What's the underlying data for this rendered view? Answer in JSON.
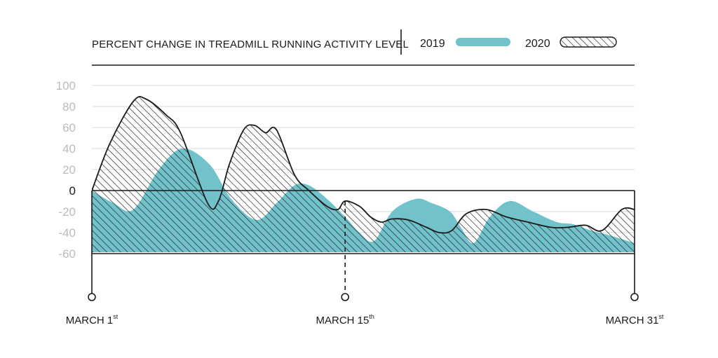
{
  "chart_data": {
    "type": "area",
    "title": "PERCENT CHANGE IN TREADMILL RUNNING ACTIVITY LEVEL",
    "xlabel": "",
    "ylabel": "",
    "ylim": [
      -60,
      100
    ],
    "yticks": [
      100,
      80,
      60,
      40,
      20,
      0,
      -20,
      -40,
      -60
    ],
    "grid": true,
    "legend_position": "top-right",
    "x_markers": [
      {
        "day": 1,
        "label": "MARCH 1",
        "sup": "st"
      },
      {
        "day": 15,
        "label": "MARCH 15",
        "sup": "th"
      },
      {
        "day": 31,
        "label": "MARCH 31",
        "sup": "st"
      }
    ],
    "series": [
      {
        "name": "2019",
        "color": "#72c2cb",
        "style": "solid-fill",
        "x": [
          1,
          2.2,
          3.3,
          4.7,
          6.0,
          7.5,
          8.7,
          10.1,
          11.2,
          12.2,
          13.0,
          14.0,
          15.0,
          15.8,
          16.6,
          17.6,
          18.9,
          19.8,
          20.8,
          21.4,
          22.1,
          23.0,
          24.1,
          25.4,
          26.7,
          27.6,
          28.6,
          29.5,
          31.0
        ],
        "values": [
          0,
          -12,
          -18,
          20,
          40,
          25,
          -8,
          -28,
          -12,
          5,
          5,
          -8,
          -25,
          -40,
          -48,
          -20,
          -8,
          -12,
          -20,
          -35,
          -50,
          -25,
          -10,
          -20,
          -30,
          -32,
          -38,
          -42,
          -50
        ]
      },
      {
        "name": "2020",
        "color": "#1a1a1a",
        "style": "hatched",
        "x": [
          1,
          2.0,
          3.3,
          4.0,
          5.1,
          5.9,
          7.4,
          8.0,
          8.6,
          9.4,
          10.0,
          10.6,
          11.2,
          12.2,
          13.0,
          14.0,
          14.6,
          15.0,
          15.8,
          16.4,
          17.0,
          17.6,
          18.5,
          19.5,
          20.2,
          20.9,
          21.7,
          22.8,
          23.9,
          25.1,
          26.4,
          27.3,
          28.3,
          29.2,
          30.3,
          31.0
        ],
        "values": [
          0,
          45,
          85,
          87,
          72,
          55,
          -12,
          -10,
          25,
          58,
          62,
          55,
          58,
          15,
          0,
          -15,
          -18,
          -10,
          -15,
          -25,
          -30,
          -27,
          -28,
          -35,
          -40,
          -38,
          -22,
          -18,
          -25,
          -30,
          -35,
          -35,
          -33,
          -38,
          -18,
          -18
        ]
      }
    ]
  }
}
